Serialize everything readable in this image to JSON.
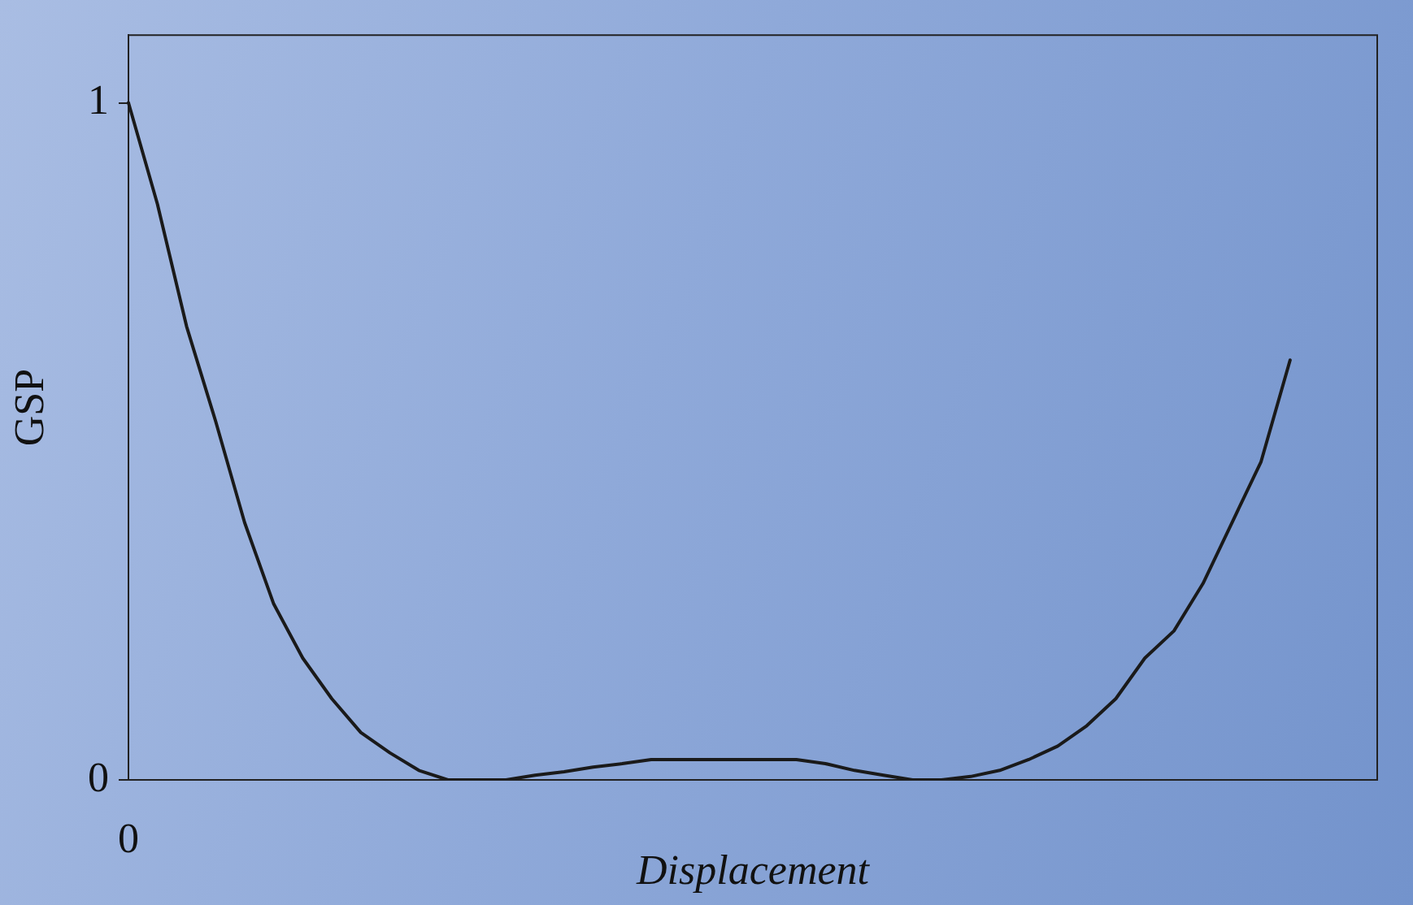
{
  "chart_data": {
    "type": "line",
    "xlabel": "Displacement",
    "ylabel": "GSP",
    "categories": [
      "0",
      null,
      null,
      null,
      null,
      null,
      null,
      null,
      null,
      null,
      null,
      null,
      null,
      null,
      null,
      null,
      null,
      null,
      null,
      null,
      null,
      null,
      null,
      null,
      null,
      null,
      null,
      null,
      null,
      null,
      null,
      null,
      null,
      null,
      null,
      null,
      null,
      null,
      null,
      null,
      null,
      null,
      null,
      null
    ],
    "series": [
      {
        "color": "#1a1a1a",
        "values": [
          1.0,
          0.85,
          0.67,
          0.53,
          0.38,
          0.26,
          0.18,
          0.12,
          0.07,
          0.04,
          0.014,
          0,
          0,
          0,
          0.007,
          0.012,
          0.019,
          0.024,
          0.03,
          0.03,
          0.03,
          0.03,
          0.03,
          0.03,
          0.024,
          0.014,
          0.007,
          0,
          0,
          0.005,
          0.014,
          0.03,
          0.05,
          0.08,
          0.12,
          0.18,
          0.22,
          0.29,
          0.38,
          0.47,
          0.62,
          null,
          null,
          null
        ]
      }
    ],
    "ylim": [
      0,
      1.1
    ],
    "yticks": [
      0,
      1
    ],
    "grid": false,
    "legend": false,
    "marker": "none",
    "line_style": "solid"
  }
}
